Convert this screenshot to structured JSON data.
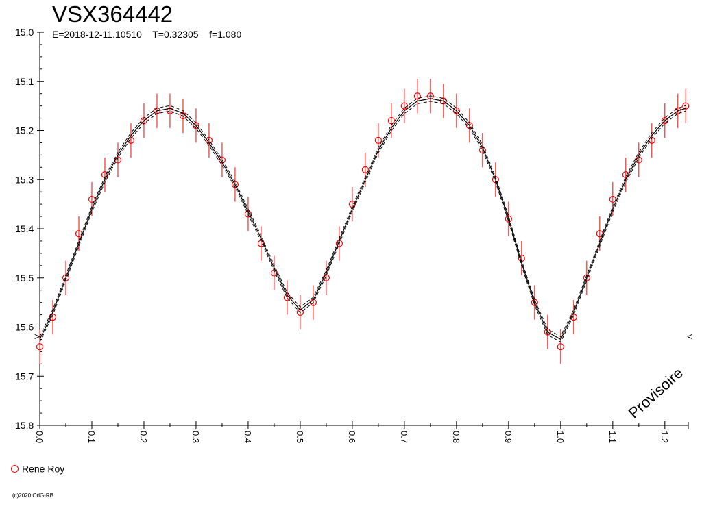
{
  "title": "VSX364442",
  "params": {
    "epoch": "E=2018-12-11.10510",
    "period": "T=0.32305",
    "f": "f=1.080"
  },
  "watermark": "Provisoire",
  "legend": {
    "name": "Rene Roy"
  },
  "copyright": "(c)2020 OdG-RB",
  "colors": {
    "data": "#ff0000",
    "model": "#000000",
    "axis": "#000000"
  },
  "chart_data": {
    "type": "scatter",
    "title": "VSX364442",
    "xlabel": "",
    "ylabel": "",
    "xlim": [
      0.0,
      1.245
    ],
    "ylim": [
      15.8,
      15.0
    ],
    "y_inverted": true,
    "x_ticks": [
      "0.0",
      "0.1",
      "0.2",
      "0.3",
      "0.4",
      "0.5",
      "0.6",
      "0.7",
      "0.8",
      "0.9",
      "1.0",
      "1.1",
      "1.2"
    ],
    "y_ticks": [
      "15.0",
      "15.1",
      "15.2",
      "15.3",
      "15.4",
      "15.5",
      "15.6",
      "15.7",
      "15.8"
    ],
    "grid": false,
    "legend_position": "bottom-left",
    "mean_error_bar": 0.035,
    "series": [
      {
        "name": "Rene Roy",
        "marker": "open-circle",
        "x": [
          0.0,
          0.025,
          0.05,
          0.075,
          0.1,
          0.125,
          0.15,
          0.175,
          0.2,
          0.225,
          0.25,
          0.275,
          0.3,
          0.325,
          0.35,
          0.375,
          0.4,
          0.425,
          0.45,
          0.475,
          0.5,
          0.525,
          0.55,
          0.575,
          0.6,
          0.625,
          0.65,
          0.675,
          0.7,
          0.725,
          0.75,
          0.775,
          0.8,
          0.825,
          0.85,
          0.875,
          0.9,
          0.925,
          0.95,
          0.975,
          1.0,
          1.025,
          1.05,
          1.075,
          1.1,
          1.125,
          1.15,
          1.175,
          1.2,
          1.225,
          1.24
        ],
        "y": [
          15.64,
          15.58,
          15.5,
          15.41,
          15.34,
          15.29,
          15.26,
          15.22,
          15.18,
          15.16,
          15.16,
          15.17,
          15.19,
          15.22,
          15.26,
          15.31,
          15.37,
          15.43,
          15.49,
          15.54,
          15.57,
          15.55,
          15.5,
          15.43,
          15.35,
          15.28,
          15.22,
          15.18,
          15.15,
          15.13,
          15.13,
          15.14,
          15.16,
          15.19,
          15.24,
          15.3,
          15.38,
          15.46,
          15.55,
          15.61,
          15.64,
          15.58,
          15.5,
          15.41,
          15.34,
          15.29,
          15.26,
          15.22,
          15.18,
          15.16,
          15.15
        ]
      },
      {
        "name": "",
        "type": "line",
        "x": [
          0.0,
          0.025,
          0.05,
          0.075,
          0.1,
          0.125,
          0.15,
          0.175,
          0.2,
          0.225,
          0.25,
          0.275,
          0.3,
          0.325,
          0.35,
          0.375,
          0.4,
          0.425,
          0.45,
          0.475,
          0.5,
          0.525,
          0.55,
          0.575,
          0.6,
          0.625,
          0.65,
          0.675,
          0.7,
          0.725,
          0.75,
          0.775,
          0.8,
          0.825,
          0.85,
          0.875,
          0.9,
          0.925,
          0.95,
          0.975,
          1.0,
          1.025,
          1.05,
          1.075,
          1.1,
          1.125,
          1.15,
          1.175,
          1.2,
          1.225,
          1.24
        ],
        "y": [
          15.625,
          15.57,
          15.5,
          15.43,
          15.36,
          15.3,
          15.25,
          15.21,
          15.18,
          15.16,
          15.155,
          15.165,
          15.19,
          15.225,
          15.265,
          15.31,
          15.365,
          15.42,
          15.48,
          15.535,
          15.565,
          15.545,
          15.49,
          15.425,
          15.36,
          15.3,
          15.24,
          15.195,
          15.16,
          15.14,
          15.135,
          15.14,
          15.16,
          15.19,
          15.235,
          15.3,
          15.38,
          15.47,
          15.55,
          15.61,
          15.625,
          15.57,
          15.5,
          15.43,
          15.36,
          15.3,
          15.25,
          15.21,
          15.18,
          15.16,
          15.155
        ]
      }
    ]
  }
}
